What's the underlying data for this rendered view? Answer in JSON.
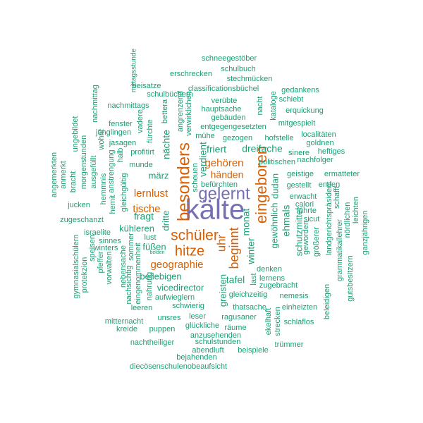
{
  "colors": {
    "purple": "#7570b3",
    "orange": "#d95f02",
    "teal": "#1b9e77"
  },
  "words": [
    {
      "text": "kälte",
      "color": "purple"
    },
    {
      "text": "gelernt",
      "color": "purple"
    },
    {
      "text": "besonders",
      "color": "orange"
    },
    {
      "text": "eingeboren",
      "color": "orange"
    },
    {
      "text": "schüler",
      "color": "orange"
    },
    {
      "text": "hitze",
      "color": "orange"
    },
    {
      "text": "beginnt",
      "color": "orange"
    },
    {
      "text": "uhr",
      "color": "orange"
    },
    {
      "text": "geographie",
      "color": "orange"
    },
    {
      "text": "tische",
      "color": "orange"
    },
    {
      "text": "lernlust",
      "color": "orange"
    },
    {
      "text": "gehören",
      "color": "orange"
    },
    {
      "text": "händen",
      "color": "orange"
    },
    {
      "text": "schneegestöber",
      "color": "teal"
    },
    {
      "text": "schulbuch",
      "color": "teal"
    },
    {
      "text": "stechmücken",
      "color": "teal"
    },
    {
      "text": "erschrecken",
      "color": "teal"
    },
    {
      "text": "classificationsbüchel",
      "color": "teal"
    },
    {
      "text": "gedankens",
      "color": "teal"
    },
    {
      "text": "beisatze",
      "color": "teal"
    },
    {
      "text": "schulbüchern",
      "color": "teal"
    },
    {
      "text": "verübte",
      "color": "teal"
    },
    {
      "text": "schiebt",
      "color": "teal"
    },
    {
      "text": "mittagsstunde",
      "color": "teal"
    },
    {
      "text": "nachmittags",
      "color": "teal"
    },
    {
      "text": "hauptsache",
      "color": "teal"
    },
    {
      "text": "erquickung",
      "color": "teal"
    },
    {
      "text": "nacht",
      "color": "teal"
    },
    {
      "text": "kataloge",
      "color": "teal"
    },
    {
      "text": "gebäuden",
      "color": "teal"
    },
    {
      "text": "nachmittag",
      "color": "teal"
    },
    {
      "text": "fenster",
      "color": "teal"
    },
    {
      "text": "jünglingen",
      "color": "teal"
    },
    {
      "text": "mitgespielt",
      "color": "teal"
    },
    {
      "text": "entgegengesetzten",
      "color": "teal"
    },
    {
      "text": "mühe",
      "color": "teal"
    },
    {
      "text": "gezogen",
      "color": "teal"
    },
    {
      "text": "hofstelle",
      "color": "teal"
    },
    {
      "text": "localitäten",
      "color": "teal"
    },
    {
      "text": "goldnen",
      "color": "teal"
    },
    {
      "text": "jasagen",
      "color": "teal"
    },
    {
      "text": "ungebildet",
      "color": "teal"
    },
    {
      "text": "vadere",
      "color": "teal"
    },
    {
      "text": "fürchte",
      "color": "teal"
    },
    {
      "text": "bettera",
      "color": "teal"
    },
    {
      "text": "angrenzend",
      "color": "teal"
    },
    {
      "text": "verwirklichen",
      "color": "teal"
    },
    {
      "text": "wohnt",
      "color": "teal"
    },
    {
      "text": "halb",
      "color": "teal"
    },
    {
      "text": "profitirt",
      "color": "teal"
    },
    {
      "text": "friert",
      "color": "teal"
    },
    {
      "text": "dreifache",
      "color": "teal"
    },
    {
      "text": "sinere",
      "color": "teal"
    },
    {
      "text": "heftiges",
      "color": "teal"
    },
    {
      "text": "nachfolger",
      "color": "teal"
    },
    {
      "text": "morgenstunden",
      "color": "teal"
    },
    {
      "text": "munde",
      "color": "teal"
    },
    {
      "text": "nächte",
      "color": "teal"
    },
    {
      "text": "verdient",
      "color": "teal"
    },
    {
      "text": "politischen",
      "color": "teal"
    },
    {
      "text": "ausgefüllt",
      "color": "teal"
    },
    {
      "text": "anstrengung",
      "color": "teal"
    },
    {
      "text": "geistige",
      "color": "teal"
    },
    {
      "text": "ermatteter",
      "color": "teal"
    },
    {
      "text": "angemerkten",
      "color": "teal"
    },
    {
      "text": "anmerkt",
      "color": "teal"
    },
    {
      "text": "bracht",
      "color": "teal"
    },
    {
      "text": "hemmnis",
      "color": "teal"
    },
    {
      "text": "gleichgültig",
      "color": "teal"
    },
    {
      "text": "märz",
      "color": "teal"
    },
    {
      "text": "scheuen",
      "color": "teal"
    },
    {
      "text": "befürchten",
      "color": "teal"
    },
    {
      "text": "dudan",
      "color": "teal"
    },
    {
      "text": "gestellt",
      "color": "teal"
    },
    {
      "text": "enden",
      "color": "teal"
    },
    {
      "text": "erwacht",
      "color": "teal"
    },
    {
      "text": "schafft",
      "color": "teal"
    },
    {
      "text": "jucken",
      "color": "teal"
    },
    {
      "text": "hemit",
      "color": "teal"
    },
    {
      "text": "calori",
      "color": "teal"
    },
    {
      "text": "führte",
      "color": "teal"
    },
    {
      "text": "landgerichtspräsident",
      "color": "teal"
    },
    {
      "text": "leichten",
      "color": "teal"
    },
    {
      "text": "zugeschanzt",
      "color": "teal"
    },
    {
      "text": "fragt",
      "color": "teal"
    },
    {
      "text": "ehmals",
      "color": "teal"
    },
    {
      "text": "sicut",
      "color": "teal"
    },
    {
      "text": "kühleren",
      "color": "teal"
    },
    {
      "text": "dritte",
      "color": "teal"
    },
    {
      "text": "gewöhnlich",
      "color": "teal"
    },
    {
      "text": "israelite",
      "color": "teal"
    },
    {
      "text": "lust",
      "color": "teal"
    },
    {
      "text": "monat",
      "color": "teal"
    },
    {
      "text": "nördlichen",
      "color": "teal"
    },
    {
      "text": "ganzjährigen",
      "color": "teal"
    },
    {
      "text": "sinnes",
      "color": "teal"
    },
    {
      "text": "füßen",
      "color": "teal"
    },
    {
      "text": "schutzmittel",
      "color": "teal"
    },
    {
      "text": "geworden",
      "color": "teal"
    },
    {
      "text": "größerer",
      "color": "teal"
    },
    {
      "text": "grammatikallehrer",
      "color": "teal"
    },
    {
      "text": "winters",
      "color": "teal"
    },
    {
      "text": "sommer",
      "color": "teal"
    },
    {
      "text": "belden",
      "color": "teal"
    },
    {
      "text": "winter",
      "color": "teal"
    },
    {
      "text": "speisen",
      "color": "teal"
    },
    {
      "text": "gymnasialschülern",
      "color": "teal"
    },
    {
      "text": "pfeffer",
      "color": "teal"
    },
    {
      "text": "vorwalten",
      "color": "teal"
    },
    {
      "text": "denken",
      "color": "teal"
    },
    {
      "text": "nebensache",
      "color": "teal"
    },
    {
      "text": "beliebigen",
      "color": "teal"
    },
    {
      "text": "tafel",
      "color": "teal"
    },
    {
      "text": "last",
      "color": "teal"
    },
    {
      "text": "lernens",
      "color": "teal"
    },
    {
      "text": "protekzion",
      "color": "teal"
    },
    {
      "text": "eingenommenheit",
      "color": "teal"
    },
    {
      "text": "zugebracht",
      "color": "teal"
    },
    {
      "text": "gutsbesitzern",
      "color": "teal"
    },
    {
      "text": "nachsichtig",
      "color": "teal"
    },
    {
      "text": "aufwieglern",
      "color": "teal"
    },
    {
      "text": "vicedirector",
      "color": "teal"
    },
    {
      "text": "nahrung",
      "color": "teal"
    },
    {
      "text": "greisten",
      "color": "teal"
    },
    {
      "text": "gleichzeitig",
      "color": "teal"
    },
    {
      "text": "nemesis",
      "color": "teal"
    },
    {
      "text": "beleidigen",
      "color": "teal"
    },
    {
      "text": "leeren",
      "color": "teal"
    },
    {
      "text": "schwierig",
      "color": "teal"
    },
    {
      "text": "thatsache",
      "color": "teal"
    },
    {
      "text": "einheizten",
      "color": "teal"
    },
    {
      "text": "mitternacht",
      "color": "teal"
    },
    {
      "text": "unsres",
      "color": "teal"
    },
    {
      "text": "leser",
      "color": "teal"
    },
    {
      "text": "ragusaner",
      "color": "teal"
    },
    {
      "text": "ekelhaft",
      "color": "teal"
    },
    {
      "text": "strecken",
      "color": "teal"
    },
    {
      "text": "schlaflos",
      "color": "teal"
    },
    {
      "text": "kreide",
      "color": "teal"
    },
    {
      "text": "puppen",
      "color": "teal"
    },
    {
      "text": "glückliche",
      "color": "teal"
    },
    {
      "text": "räume",
      "color": "teal"
    },
    {
      "text": "anzusehenden",
      "color": "teal"
    },
    {
      "text": "nachtheiliger",
      "color": "teal"
    },
    {
      "text": "schulstunden",
      "color": "teal"
    },
    {
      "text": "trümmer",
      "color": "teal"
    },
    {
      "text": "abendluft",
      "color": "teal"
    },
    {
      "text": "beispiele",
      "color": "teal"
    },
    {
      "text": "bejahenden",
      "color": "teal"
    },
    {
      "text": "diecösenschulenobeaufsicht",
      "color": "teal"
    }
  ]
}
